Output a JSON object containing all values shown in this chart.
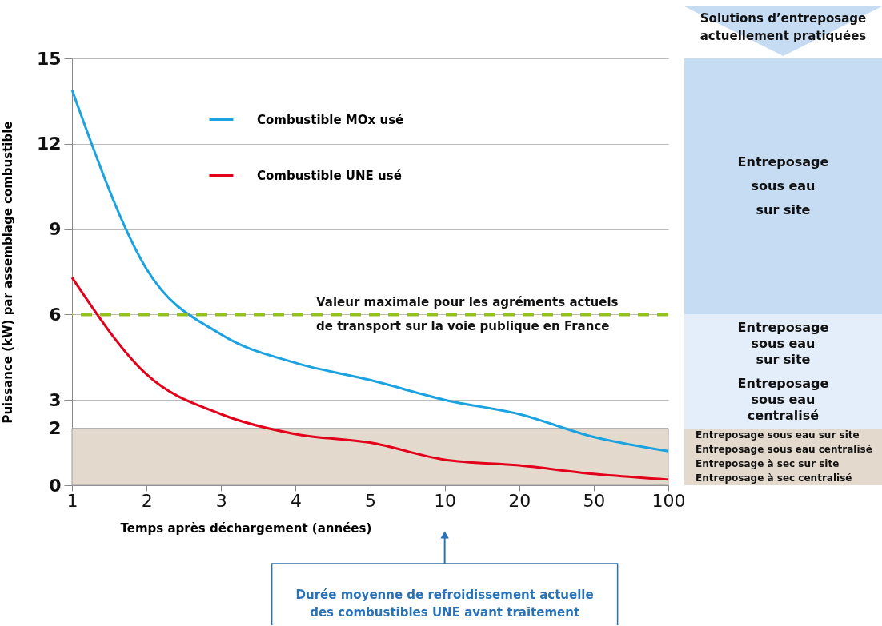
{
  "chart_data": {
    "type": "line",
    "xlabel": "Temps après déchargement (années)",
    "ylabel": "Puissance (kW) par assemblage combustible",
    "categories": [
      "1",
      "2",
      "3",
      "4",
      "5",
      "10",
      "20",
      "50",
      "100"
    ],
    "series": [
      {
        "name": "Combustible MOx usé",
        "color": "#1aa3e0",
        "values": [
          13.9,
          7.6,
          5.3,
          4.3,
          3.7,
          3.0,
          2.5,
          1.7,
          1.2
        ]
      },
      {
        "name": "Combustible UNE usé",
        "color": "#e3001b",
        "values": [
          7.3,
          3.9,
          2.5,
          1.8,
          1.5,
          0.9,
          0.7,
          0.4,
          0.2
        ]
      }
    ],
    "ylim": [
      0,
      15
    ],
    "yticks": [
      0,
      2,
      3,
      6,
      9,
      12,
      15
    ],
    "grid": "y",
    "legend": "top left",
    "line_style": "solid",
    "marker": "none",
    "ref_lines": [
      {
        "axis": "y",
        "value": 6,
        "label": "Valeur maximale  pour les agréments actuels\nde transport sur la voie publique en France",
        "color": "#95c11f",
        "line_style": "dashed"
      }
    ],
    "bands": [
      {
        "axis": "y",
        "from": 0,
        "to": 2,
        "color": "#e3d9cc"
      }
    ],
    "annotations": [
      "Solutions d’entreposage\nactuellement pratiquées",
      "Entreposage\nsous eau\nsur site",
      "Entreposage\nsous eau\nsur site",
      "Entreposage\nsous eau\ncentralisé",
      "Entreposage sous eau sur site\nEntreposage sous eau centralisé\nEntreposage à sec sur site\nEntreposage à sec centralisé",
      "Durée moyenne de refroidissement actuelle\ndes combustibles UNE avant traitement"
    ]
  }
}
